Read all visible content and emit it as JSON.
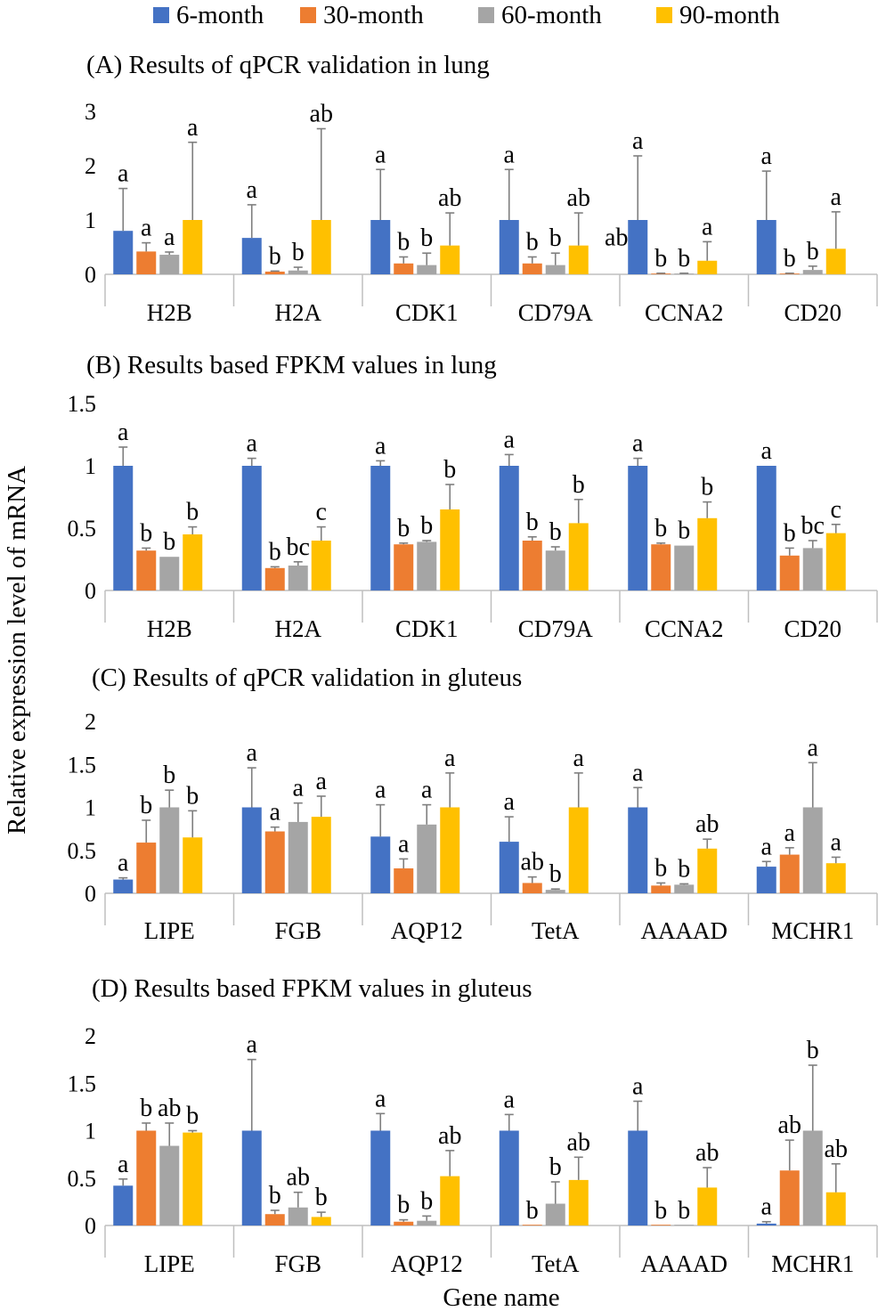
{
  "legend": [
    {
      "name": "6-month",
      "color": "#4472C4"
    },
    {
      "name": "30-month",
      "color": "#ED7D31"
    },
    {
      "name": "60-month",
      "color": "#A5A5A5"
    },
    {
      "name": "90-month",
      "color": "#FFC000"
    }
  ],
  "shared_ylabel": "Relative expression level of mRNA",
  "shared_xlabel": "Gene name",
  "chart_data": [
    {
      "type": "bar",
      "title": "(A) Results of qPCR validation in lung",
      "categories": [
        "H2B",
        "H2A",
        "CDK1",
        "CD79A",
        "CCNA2",
        "CD20"
      ],
      "ylim": [
        0,
        3
      ],
      "yticks": [
        "0",
        "1",
        "2",
        "3"
      ],
      "ytick_values": [
        0,
        1,
        2,
        3
      ],
      "series": [
        {
          "name": "6-month",
          "values": [
            0.8,
            0.67,
            1.0,
            1.0,
            1.0,
            1.0
          ],
          "errors": [
            0.78,
            0.61,
            0.93,
            0.93,
            1.18,
            0.9
          ],
          "labels": [
            "a",
            "a",
            "a",
            "a",
            "a",
            "a"
          ]
        },
        {
          "name": "30-month",
          "values": [
            0.42,
            0.05,
            0.2,
            0.2,
            0.01,
            0.01
          ],
          "errors": [
            0.16,
            0.01,
            0.12,
            0.12,
            0.01,
            0.01
          ],
          "labels": [
            "a",
            "b",
            "b",
            "b",
            "b",
            "b"
          ]
        },
        {
          "name": "60-month",
          "values": [
            0.36,
            0.07,
            0.17,
            0.17,
            0.01,
            0.08
          ],
          "errors": [
            0.05,
            0.06,
            0.22,
            0.22,
            0.01,
            0.07
          ],
          "labels": [
            "a",
            "b",
            "b",
            "b",
            "b",
            "b"
          ]
        },
        {
          "name": "90-month",
          "values": [
            1.0,
            1.0,
            0.53,
            0.53,
            0.25,
            0.47
          ],
          "errors": [
            1.43,
            1.68,
            0.6,
            0.6,
            0.35,
            0.68
          ],
          "labels": [
            "a",
            "ab",
            "ab",
            "ab",
            "a",
            "a"
          ]
        }
      ],
      "extra_labels": [
        {
          "category": "CCNA2",
          "text": "ab"
        }
      ]
    },
    {
      "type": "bar",
      "title": "(B) Results based FPKM values in lung",
      "categories": [
        "H2B",
        "H2A",
        "CDK1",
        "CD79A",
        "CCNA2",
        "CD20"
      ],
      "ylim": [
        0,
        1.5
      ],
      "yticks": [
        "0",
        "0.5",
        "1",
        "1.5"
      ],
      "ytick_values": [
        0,
        0.5,
        1,
        1.5
      ],
      "series": [
        {
          "name": "6-month",
          "values": [
            1.0,
            1.0,
            1.0,
            1.0,
            1.0,
            1.0
          ],
          "errors": [
            0.15,
            0.06,
            0.04,
            0.09,
            0.06,
            0.0
          ],
          "labels": [
            "a",
            "a",
            "a",
            "a",
            "a",
            "a"
          ]
        },
        {
          "name": "30-month",
          "values": [
            0.32,
            0.18,
            0.37,
            0.4,
            0.37,
            0.28
          ],
          "errors": [
            0.02,
            0.01,
            0.01,
            0.03,
            0.01,
            0.06
          ],
          "labels": [
            "b",
            "b",
            "b",
            "b",
            "b",
            "b"
          ]
        },
        {
          "name": "60-month",
          "values": [
            0.27,
            0.2,
            0.39,
            0.32,
            0.36,
            0.34
          ],
          "errors": [
            0.0,
            0.03,
            0.01,
            0.03,
            0.0,
            0.06
          ],
          "labels": [
            "b",
            "bc",
            "b",
            "b",
            "b",
            "bc"
          ]
        },
        {
          "name": "90-month",
          "values": [
            0.45,
            0.4,
            0.65,
            0.54,
            0.58,
            0.46
          ],
          "errors": [
            0.06,
            0.11,
            0.2,
            0.19,
            0.13,
            0.07
          ],
          "labels": [
            "b",
            "c",
            "b",
            "b",
            "b",
            "c"
          ]
        }
      ]
    },
    {
      "type": "bar",
      "title": "(C) Results of qPCR validation in gluteus",
      "categories": [
        "LIPE",
        "FGB",
        "AQP12",
        "TetA",
        "AAAAD",
        "MCHR1"
      ],
      "ylim": [
        0,
        2
      ],
      "yticks": [
        "0",
        "0.5",
        "1",
        "1.5",
        "2"
      ],
      "ytick_values": [
        0,
        0.5,
        1,
        1.5,
        2
      ],
      "series": [
        {
          "name": "6-month",
          "values": [
            0.16,
            1.0,
            0.66,
            0.6,
            1.0,
            0.31
          ],
          "errors": [
            0.02,
            0.46,
            0.37,
            0.29,
            0.23,
            0.06
          ],
          "labels": [
            "a",
            "a",
            "a",
            "a",
            "a",
            "a"
          ]
        },
        {
          "name": "30-month",
          "values": [
            0.59,
            0.72,
            0.29,
            0.12,
            0.09,
            0.45
          ],
          "errors": [
            0.26,
            0.05,
            0.11,
            0.07,
            0.03,
            0.08
          ],
          "labels": [
            "b",
            "a",
            "a",
            "ab",
            "b",
            "a"
          ]
        },
        {
          "name": "60-month",
          "values": [
            1.0,
            0.83,
            0.8,
            0.04,
            0.1,
            1.0
          ],
          "errors": [
            0.2,
            0.22,
            0.23,
            0.01,
            0.01,
            0.52
          ],
          "labels": [
            "b",
            "a",
            "a",
            "b",
            "b",
            "a"
          ]
        },
        {
          "name": "90-month",
          "values": [
            0.65,
            0.89,
            1.0,
            1.0,
            0.52,
            0.35
          ],
          "errors": [
            0.31,
            0.24,
            0.4,
            0.4,
            0.11,
            0.07
          ],
          "labels": [
            "b",
            "a",
            "a",
            "a",
            "ab",
            "a"
          ]
        }
      ]
    },
    {
      "type": "bar",
      "title": "(D) Results based FPKM values in gluteus",
      "categories": [
        "LIPE",
        "FGB",
        "AQP12",
        "TetA",
        "AAAAD",
        "MCHR1"
      ],
      "ylim": [
        0,
        2
      ],
      "yticks": [
        "0",
        "0.5",
        "1",
        "1.5",
        "2"
      ],
      "ytick_values": [
        0,
        0.5,
        1,
        1.5,
        2
      ],
      "series": [
        {
          "name": "6-month",
          "values": [
            0.42,
            1.0,
            1.0,
            1.0,
            1.0,
            0.02
          ],
          "errors": [
            0.07,
            0.75,
            0.18,
            0.17,
            0.31,
            0.02
          ],
          "labels": [
            "a",
            "a",
            "a",
            "a",
            "a",
            "a"
          ]
        },
        {
          "name": "30-month",
          "values": [
            1.0,
            0.12,
            0.04,
            0.0,
            0.0,
            0.58
          ],
          "errors": [
            0.08,
            0.04,
            0.02,
            0.0,
            0.0,
            0.32
          ],
          "labels": [
            "b",
            "b",
            "b",
            "b",
            "b",
            "ab"
          ]
        },
        {
          "name": "60-month",
          "values": [
            0.84,
            0.19,
            0.05,
            0.23,
            0.0,
            1.0
          ],
          "errors": [
            0.24,
            0.16,
            0.05,
            0.23,
            0.0,
            0.69
          ],
          "labels": [
            "ab",
            "ab",
            "b",
            "b",
            "b",
            "b"
          ]
        },
        {
          "name": "90-month",
          "values": [
            0.98,
            0.09,
            0.52,
            0.48,
            0.4,
            0.35
          ],
          "errors": [
            0.02,
            0.05,
            0.27,
            0.24,
            0.21,
            0.3
          ],
          "labels": [
            "b",
            "b",
            "ab",
            "ab",
            "ab",
            "ab"
          ]
        }
      ]
    }
  ]
}
